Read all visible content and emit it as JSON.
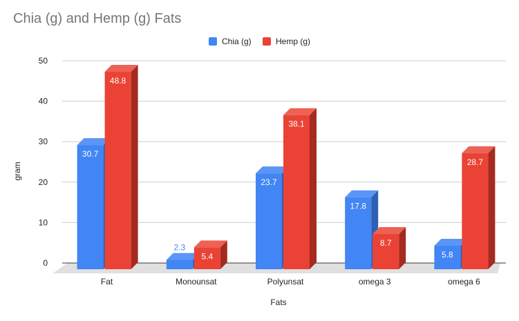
{
  "chart_data": {
    "type": "bar",
    "title": "Chia (g) and Hemp (g) Fats",
    "xlabel": "Fats",
    "ylabel": "gram",
    "categories": [
      "Fat",
      "Monounsat",
      "Polyunsat",
      "omega 3",
      "omega 6"
    ],
    "series": [
      {
        "name": "Chia (g)",
        "values": [
          30.7,
          2.3,
          23.7,
          17.8,
          5.8
        ],
        "color": "#4285f4",
        "side_color": "#2f5fb3",
        "top_color": "#5b95f7"
      },
      {
        "name": "Hemp (g)",
        "values": [
          48.8,
          5.4,
          38.1,
          8.7,
          28.7
        ],
        "color": "#ea4335",
        "side_color": "#a52a20",
        "top_color": "#ee6155"
      }
    ],
    "value_labels": [
      [
        "30.7",
        "2.3",
        "23.7",
        "17.8",
        "5.8"
      ],
      [
        "48.8",
        "5.4",
        "38.1",
        "8.7",
        "28.7"
      ]
    ],
    "ylim": [
      0,
      50
    ],
    "yticks": [
      "0",
      "10",
      "20",
      "30",
      "40",
      "50"
    ],
    "grid": true,
    "legend": "top-center"
  }
}
